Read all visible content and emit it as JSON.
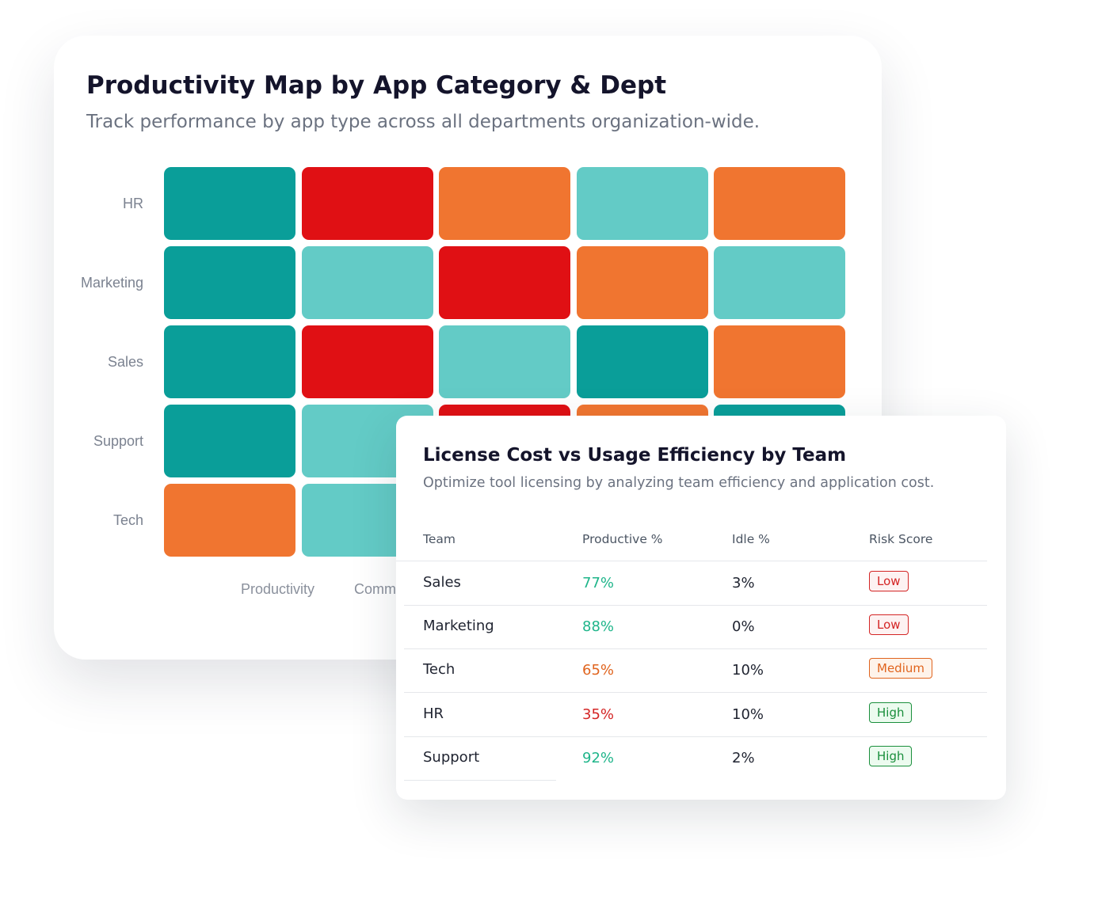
{
  "heatmap_card": {
    "title": "Productivity Map by App Category & Dept",
    "subtitle": "Track performance by app type across all departments organization-wide.",
    "rows": [
      {
        "label": "HR",
        "cells": [
          "#0a9e99",
          "#e01014",
          "#f07530",
          "#63cbc6",
          "#f07530"
        ]
      },
      {
        "label": "Marketing",
        "cells": [
          "#0a9e99",
          "#63cbc6",
          "#e01014",
          "#f07530",
          "#63cbc6"
        ]
      },
      {
        "label": "Sales",
        "cells": [
          "#0a9e99",
          "#e01014",
          "#63cbc6",
          "#0a9e99",
          "#f07530"
        ]
      },
      {
        "label": "Support",
        "cells": [
          "#0a9e99",
          "#63cbc6",
          "#e01014",
          "#f07530",
          "#0a9e99"
        ]
      },
      {
        "label": "Tech",
        "cells": [
          "#f07530",
          "#63cbc6"
        ]
      }
    ],
    "columns": [
      "Productivity",
      "Comm"
    ]
  },
  "table_card": {
    "title": "License Cost vs Usage Efficiency by Team",
    "subtitle": "Optimize tool licensing by analyzing team efficiency and application cost.",
    "columns": [
      "Team",
      "Productive %",
      "Idle %",
      "Risk Score"
    ],
    "rows": [
      {
        "team": "Sales",
        "productive": "77%",
        "productive_color": "#1fb58a",
        "idle": "3%",
        "risk": "Low",
        "risk_color": "#d42525",
        "risk_bg": "#fdf2f2"
      },
      {
        "team": "Marketing",
        "productive": "88%",
        "productive_color": "#1fb58a",
        "idle": "0%",
        "risk": "Low",
        "risk_color": "#d42525",
        "risk_bg": "#fdf2f2"
      },
      {
        "team": "Tech",
        "productive": "65%",
        "productive_color": "#e0641e",
        "idle": "10%",
        "risk": "Medium",
        "risk_color": "#e0641e",
        "risk_bg": "#fef3ea"
      },
      {
        "team": "HR",
        "productive": "35%",
        "productive_color": "#d42525",
        "idle": "10%",
        "risk": "High",
        "risk_color": "#1a8f3c",
        "risk_bg": "#ecfbef"
      },
      {
        "team": "Support",
        "productive": "92%",
        "productive_color": "#1fb58a",
        "idle": "2%",
        "risk": "High",
        "risk_color": "#1a8f3c",
        "risk_bg": "#ecfbef"
      }
    ]
  }
}
